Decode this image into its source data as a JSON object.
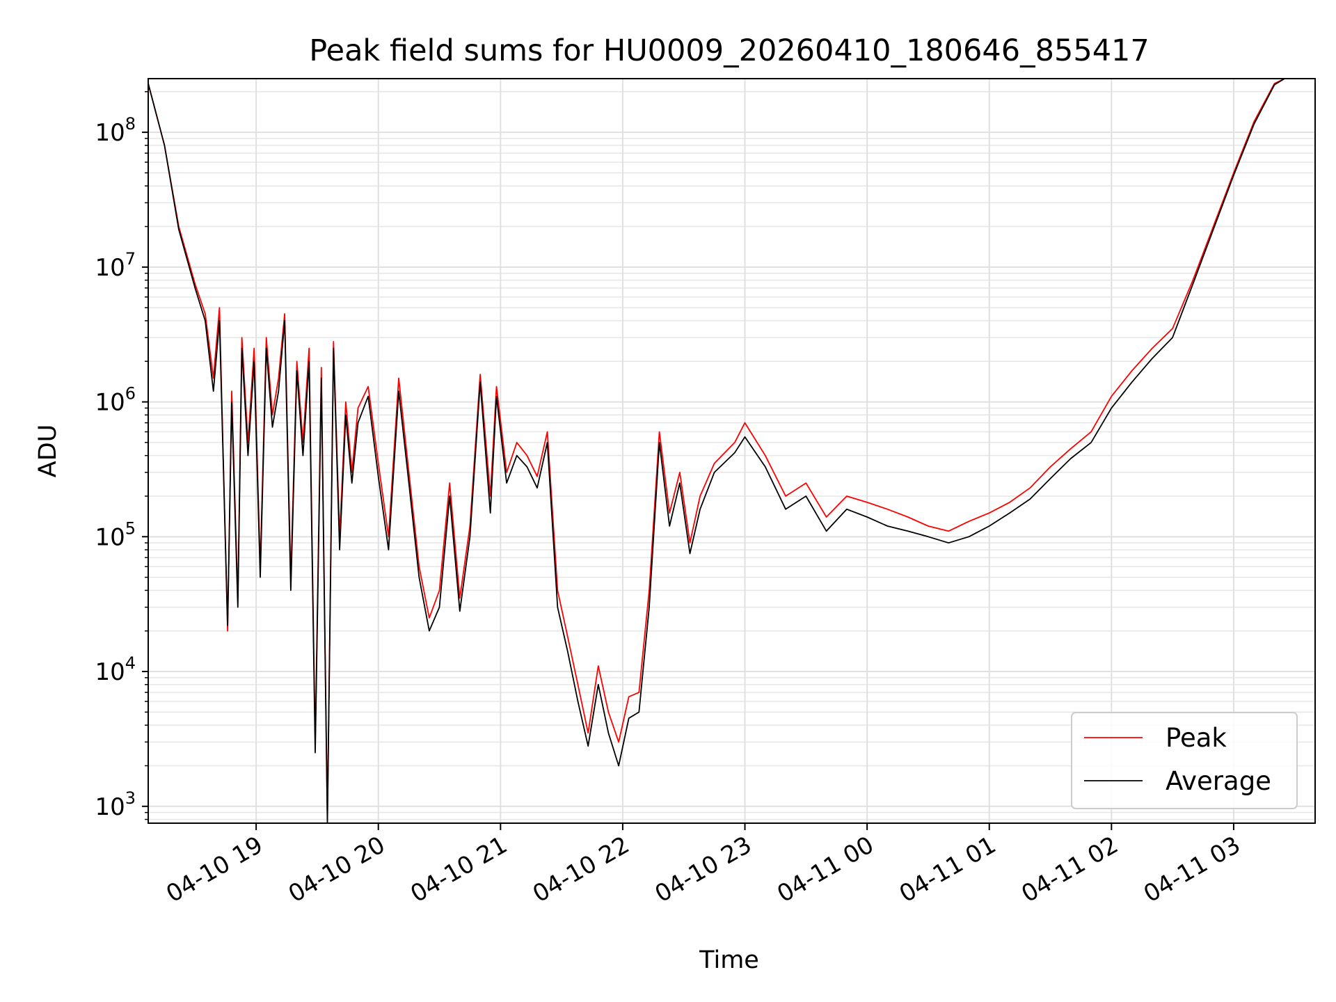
{
  "chart_data": {
    "type": "line",
    "title": "Peak field sums for HU0009_20260410_180646_855417",
    "xlabel": "Time",
    "ylabel": "ADU",
    "y_scale": "log",
    "ylim": [
      750,
      250000000
    ],
    "xlim": [
      "2026-04-10 18:07",
      "2026-04-11 03:40"
    ],
    "grid": true,
    "legend_position": "lower-right",
    "x_ticks": [
      {
        "label": "04-10 19",
        "t": "2026-04-10 19:00"
      },
      {
        "label": "04-10 20",
        "t": "2026-04-10 20:00"
      },
      {
        "label": "04-10 21",
        "t": "2026-04-10 21:00"
      },
      {
        "label": "04-10 22",
        "t": "2026-04-10 22:00"
      },
      {
        "label": "04-10 23",
        "t": "2026-04-10 23:00"
      },
      {
        "label": "04-11 00",
        "t": "2026-04-11 00:00"
      },
      {
        "label": "04-11 01",
        "t": "2026-04-11 01:00"
      },
      {
        "label": "04-11 02",
        "t": "2026-04-11 02:00"
      },
      {
        "label": "04-11 03",
        "t": "2026-04-11 03:00"
      }
    ],
    "y_ticks": [
      {
        "base": "10",
        "exp": "3",
        "value": 1000
      },
      {
        "base": "10",
        "exp": "4",
        "value": 10000
      },
      {
        "base": "10",
        "exp": "5",
        "value": 100000
      },
      {
        "base": "10",
        "exp": "6",
        "value": 1000000
      },
      {
        "base": "10",
        "exp": "7",
        "value": 10000000
      },
      {
        "base": "10",
        "exp": "8",
        "value": 100000000
      }
    ],
    "x": [
      "2026-04-10 18:07",
      "2026-04-10 18:15",
      "2026-04-10 18:22",
      "2026-04-10 18:30",
      "2026-04-10 18:35",
      "2026-04-10 18:39",
      "2026-04-10 18:42",
      "2026-04-10 18:46",
      "2026-04-10 18:48",
      "2026-04-10 18:51",
      "2026-04-10 18:53",
      "2026-04-10 18:56",
      "2026-04-10 18:59",
      "2026-04-10 19:02",
      "2026-04-10 19:05",
      "2026-04-10 19:08",
      "2026-04-10 19:11",
      "2026-04-10 19:14",
      "2026-04-10 19:17",
      "2026-04-10 19:20",
      "2026-04-10 19:23",
      "2026-04-10 19:26",
      "2026-04-10 19:29",
      "2026-04-10 19:32",
      "2026-04-10 19:35",
      "2026-04-10 19:38",
      "2026-04-10 19:41",
      "2026-04-10 19:44",
      "2026-04-10 19:47",
      "2026-04-10 19:50",
      "2026-04-10 19:55",
      "2026-04-10 20:00",
      "2026-04-10 20:05",
      "2026-04-10 20:10",
      "2026-04-10 20:15",
      "2026-04-10 20:20",
      "2026-04-10 20:25",
      "2026-04-10 20:30",
      "2026-04-10 20:35",
      "2026-04-10 20:40",
      "2026-04-10 20:45",
      "2026-04-10 20:50",
      "2026-04-10 20:55",
      "2026-04-10 20:58",
      "2026-04-10 21:03",
      "2026-04-10 21:08",
      "2026-04-10 21:13",
      "2026-04-10 21:18",
      "2026-04-10 21:23",
      "2026-04-10 21:28",
      "2026-04-10 21:33",
      "2026-04-10 21:38",
      "2026-04-10 21:43",
      "2026-04-10 21:48",
      "2026-04-10 21:53",
      "2026-04-10 21:58",
      "2026-04-10 22:03",
      "2026-04-10 22:08",
      "2026-04-10 22:13",
      "2026-04-10 22:18",
      "2026-04-10 22:23",
      "2026-04-10 22:28",
      "2026-04-10 22:33",
      "2026-04-10 22:38",
      "2026-04-10 22:45",
      "2026-04-10 22:55",
      "2026-04-10 23:00",
      "2026-04-10 23:10",
      "2026-04-10 23:20",
      "2026-04-10 23:30",
      "2026-04-10 23:40",
      "2026-04-10 23:50",
      "2026-04-11 00:00",
      "2026-04-11 00:10",
      "2026-04-11 00:20",
      "2026-04-11 00:30",
      "2026-04-11 00:40",
      "2026-04-11 00:50",
      "2026-04-11 01:00",
      "2026-04-11 01:10",
      "2026-04-11 01:20",
      "2026-04-11 01:30",
      "2026-04-11 01:40",
      "2026-04-11 01:50",
      "2026-04-11 02:00",
      "2026-04-11 02:10",
      "2026-04-11 02:20",
      "2026-04-11 02:30",
      "2026-04-11 02:40",
      "2026-04-11 02:50",
      "2026-04-11 03:00",
      "2026-04-11 03:10",
      "2026-04-11 03:20",
      "2026-04-11 03:25"
    ],
    "series": [
      {
        "name": "Peak",
        "color": "#ff0000",
        "values": [
          230000000,
          80000000,
          20000000,
          7500000,
          4500000,
          1500000,
          5000000,
          20000,
          1200000,
          35000,
          3000000,
          500000,
          2500000,
          60000,
          3000000,
          800000,
          1500000,
          4500000,
          50000,
          2000000,
          500000,
          2500000,
          3000,
          1800000,
          800,
          2800000,
          100000,
          1000000,
          300000,
          900000,
          1300000,
          350000,
          100000,
          1500000,
          300000,
          60000,
          25000,
          40000,
          250000,
          35000,
          120000,
          1600000,
          200000,
          1300000,
          300000,
          500000,
          400000,
          280000,
          600000,
          40000,
          18000,
          8000,
          3500,
          11000,
          5000,
          3000,
          6500,
          7000,
          40000,
          600000,
          150000,
          300000,
          90000,
          200000,
          350000,
          500000,
          700000,
          400000,
          200000,
          250000,
          140000,
          200000,
          180000,
          160000,
          140000,
          120000,
          110000,
          130000,
          150000,
          180000,
          230000,
          330000,
          450000,
          600000,
          1100000,
          1700000,
          2500000,
          3500000,
          8000000,
          20000000,
          50000000,
          120000000,
          230000000,
          250000000
        ]
      },
      {
        "name": "Average",
        "color": "#000000",
        "values": [
          230000000,
          80000000,
          19000000,
          7000000,
          4000000,
          1200000,
          4000000,
          22000,
          1000000,
          30000,
          2500000,
          400000,
          2000000,
          50000,
          2500000,
          650000,
          1200000,
          4000000,
          40000,
          1700000,
          400000,
          2000000,
          2500,
          1500000,
          750,
          2500000,
          80000,
          800000,
          250000,
          700000,
          1100000,
          280000,
          80000,
          1200000,
          250000,
          50000,
          20000,
          30000,
          200000,
          28000,
          100000,
          1400000,
          150000,
          1100000,
          250000,
          400000,
          330000,
          230000,
          500000,
          30000,
          14000,
          6000,
          2800,
          8000,
          3500,
          2000,
          4500,
          5000,
          30000,
          500000,
          120000,
          250000,
          75000,
          160000,
          300000,
          420000,
          550000,
          330000,
          160000,
          200000,
          110000,
          160000,
          140000,
          120000,
          110000,
          100000,
          90000,
          100000,
          120000,
          150000,
          190000,
          270000,
          380000,
          500000,
          900000,
          1400000,
          2100000,
          3000000,
          7500000,
          19000000,
          48000000,
          115000000,
          225000000,
          250000000
        ]
      }
    ]
  }
}
